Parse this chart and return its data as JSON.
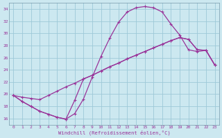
{
  "background_color": "#cce8f0",
  "grid_color": "#9dc8d8",
  "line_color": "#993399",
  "xlabel": "Windchill (Refroidissement éolien,°C)",
  "xlim": [
    -0.5,
    23.5
  ],
  "ylim": [
    15.0,
    35.0
  ],
  "yticks": [
    16,
    18,
    20,
    22,
    24,
    26,
    28,
    30,
    32,
    34
  ],
  "xticks": [
    0,
    1,
    2,
    3,
    4,
    5,
    6,
    7,
    8,
    9,
    10,
    11,
    12,
    13,
    14,
    15,
    16,
    17,
    18,
    19,
    20,
    21,
    22,
    23
  ],
  "curve1_x": [
    0,
    1,
    2,
    3,
    4,
    5,
    6,
    7,
    8,
    9,
    10,
    11,
    12,
    13,
    14,
    15,
    16,
    17,
    18,
    19,
    20,
    21,
    22,
    23
  ],
  "curve1_y": [
    19.8,
    18.8,
    18.0,
    17.2,
    16.7,
    16.2,
    15.9,
    16.8,
    19.2,
    22.8,
    26.2,
    29.2,
    31.8,
    33.5,
    34.2,
    34.4,
    34.2,
    33.5,
    31.5,
    29.7,
    27.3,
    27.0,
    27.2,
    24.8
  ],
  "curve2_x": [
    0,
    1,
    2,
    3,
    4,
    5,
    6,
    7,
    8,
    9,
    10,
    11,
    12,
    13,
    14,
    15,
    16,
    17,
    18,
    19,
    20,
    21,
    22,
    23
  ],
  "curve2_y": [
    19.8,
    19.5,
    19.3,
    19.1,
    19.8,
    20.5,
    21.2,
    21.8,
    22.5,
    23.1,
    23.8,
    24.5,
    25.1,
    25.8,
    26.4,
    27.0,
    27.6,
    28.2,
    28.8,
    29.3,
    29.0,
    27.3,
    27.2,
    24.8
  ],
  "curve3_x": [
    0,
    1,
    2,
    3,
    4,
    5,
    6,
    7,
    8,
    9,
    10,
    11,
    12,
    13,
    14,
    15,
    16,
    17,
    18,
    19,
    20,
    21,
    22,
    23
  ],
  "curve3_y": [
    19.8,
    18.8,
    18.0,
    17.2,
    16.7,
    16.2,
    15.9,
    19.0,
    22.5,
    23.1,
    23.8,
    24.5,
    25.1,
    25.8,
    26.4,
    27.0,
    27.6,
    28.2,
    28.8,
    29.3,
    29.0,
    27.3,
    27.2,
    24.8
  ]
}
